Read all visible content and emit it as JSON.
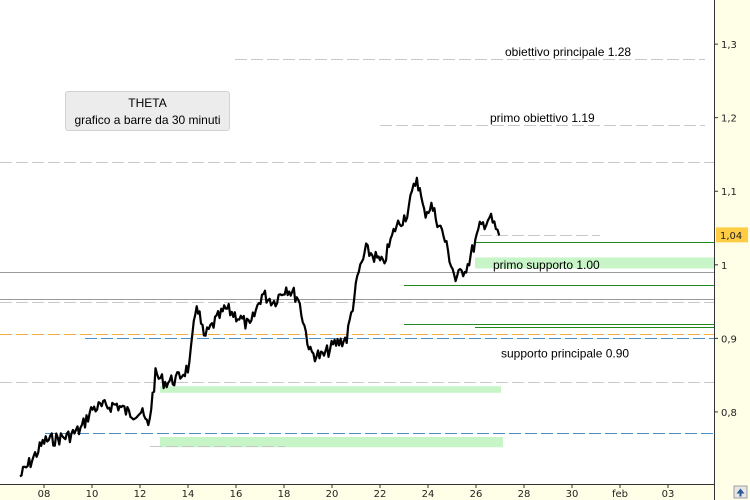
{
  "chart_data": {
    "type": "bar",
    "title": "THETA",
    "subtitle": "grafico a barre da 30 minuti",
    "ylim": [
      0.702,
      1.36
    ],
    "x_tick_labels": [
      "08",
      "10",
      "12",
      "14",
      "16",
      "18",
      "20",
      "22",
      "24",
      "26",
      "28",
      "30",
      "feb",
      "03"
    ],
    "y_ticks": [
      {
        "value": 1.3,
        "label": "1,3"
      },
      {
        "value": 1.2,
        "label": "1,2"
      },
      {
        "value": 1.1,
        "label": "1,1"
      },
      {
        "value": 1.0,
        "label": "1"
      },
      {
        "value": 0.9,
        "label": "0,9"
      },
      {
        "value": 0.8,
        "label": "0,8"
      }
    ],
    "last_price": {
      "value": 1.04,
      "label": "1,04"
    },
    "price_series": [
      {
        "x": "07",
        "y": 0.712
      },
      {
        "x": "07.5",
        "y": 0.735
      },
      {
        "x": "08",
        "y": 0.76
      },
      {
        "x": "09",
        "y": 0.767
      },
      {
        "x": "09.5",
        "y": 0.776
      },
      {
        "x": "10",
        "y": 0.805
      },
      {
        "x": "11",
        "y": 0.81
      },
      {
        "x": "11.5",
        "y": 0.798
      },
      {
        "x": "12",
        "y": 0.8
      },
      {
        "x": "12.3",
        "y": 0.78
      },
      {
        "x": "12.6",
        "y": 0.85
      },
      {
        "x": "13",
        "y": 0.84
      },
      {
        "x": "13.5",
        "y": 0.845
      },
      {
        "x": "14",
        "y": 0.862
      },
      {
        "x": "14.3",
        "y": 0.95
      },
      {
        "x": "14.6",
        "y": 0.9
      },
      {
        "x": "15",
        "y": 0.92
      },
      {
        "x": "15.5",
        "y": 0.94
      },
      {
        "x": "16",
        "y": 0.93
      },
      {
        "x": "16.5",
        "y": 0.915
      },
      {
        "x": "17",
        "y": 0.96
      },
      {
        "x": "17.5",
        "y": 0.95
      },
      {
        "x": "18",
        "y": 0.97
      },
      {
        "x": "18.5",
        "y": 0.955
      },
      {
        "x": "19",
        "y": 0.88
      },
      {
        "x": "19.5",
        "y": 0.875
      },
      {
        "x": "20",
        "y": 0.892
      },
      {
        "x": "20.5",
        "y": 0.9
      },
      {
        "x": "21",
        "y": 0.99
      },
      {
        "x": "21.3",
        "y": 1.02
      },
      {
        "x": "21.7",
        "y": 1.01
      },
      {
        "x": "22",
        "y": 1.0
      },
      {
        "x": "22.5",
        "y": 1.05
      },
      {
        "x": "23",
        "y": 1.07
      },
      {
        "x": "23.4",
        "y": 1.12
      },
      {
        "x": "23.7",
        "y": 1.07
      },
      {
        "x": "24",
        "y": 1.08
      },
      {
        "x": "24.5",
        "y": 1.04
      },
      {
        "x": "25",
        "y": 0.98
      },
      {
        "x": "25.5",
        "y": 1.0
      },
      {
        "x": "26",
        "y": 1.05
      },
      {
        "x": "26.4",
        "y": 1.065
      },
      {
        "x": "26.8",
        "y": 1.04
      }
    ],
    "annotations": [
      {
        "label": "obiettivo principale 1.28",
        "value": 1.28
      },
      {
        "label": "primo obiettivo 1.19",
        "value": 1.19
      },
      {
        "label": "primo supporto 1.00",
        "value": 1.0
      },
      {
        "label": "supporto principale 0.90",
        "value": 0.9
      }
    ],
    "levels": [
      {
        "kind": "dashed",
        "value": 1.28,
        "color": "#c8c8c8"
      },
      {
        "kind": "dashed",
        "value": 1.19,
        "color": "#c8c8c8"
      },
      {
        "kind": "dashed",
        "value": 1.14,
        "color": "#c8c8c8"
      },
      {
        "kind": "dashed",
        "value": 1.04,
        "color": "#c8c8c8"
      },
      {
        "kind": "solid",
        "value": 0.99,
        "color": "#9a9a9a"
      },
      {
        "kind": "solid",
        "value": 0.954,
        "color": "#9a9a9a"
      },
      {
        "kind": "dashed",
        "value": 0.95,
        "color": "#c8c8c8"
      },
      {
        "kind": "dashed",
        "value": 0.906,
        "color": "#f0b040"
      },
      {
        "kind": "dashed",
        "value": 0.901,
        "color": "#4a8fc8"
      },
      {
        "kind": "dashed",
        "value": 0.84,
        "color": "#c8c8c8"
      },
      {
        "kind": "dashed",
        "value": 0.772,
        "color": "#4a8fc8"
      },
      {
        "kind": "dashed",
        "value": 0.753,
        "color": "#c8c8c8"
      },
      {
        "kind": "green",
        "value": 1.031
      },
      {
        "kind": "green",
        "value": 0.973
      },
      {
        "kind": "green",
        "value": 0.92
      },
      {
        "kind": "green",
        "value": 0.915
      }
    ],
    "zones": [
      {
        "from": 0.995,
        "to": 1.01,
        "color": "#c8f5c8"
      },
      {
        "from": 0.826,
        "to": 0.835,
        "color": "#c8f5c8"
      },
      {
        "from": 0.752,
        "to": 0.766,
        "color": "#c8f5c8"
      }
    ],
    "colors": {
      "price": "#000000",
      "axis_bg": "#ffffe8",
      "last_price_bg": "#ffcc44",
      "support_line": "#228822"
    }
  }
}
